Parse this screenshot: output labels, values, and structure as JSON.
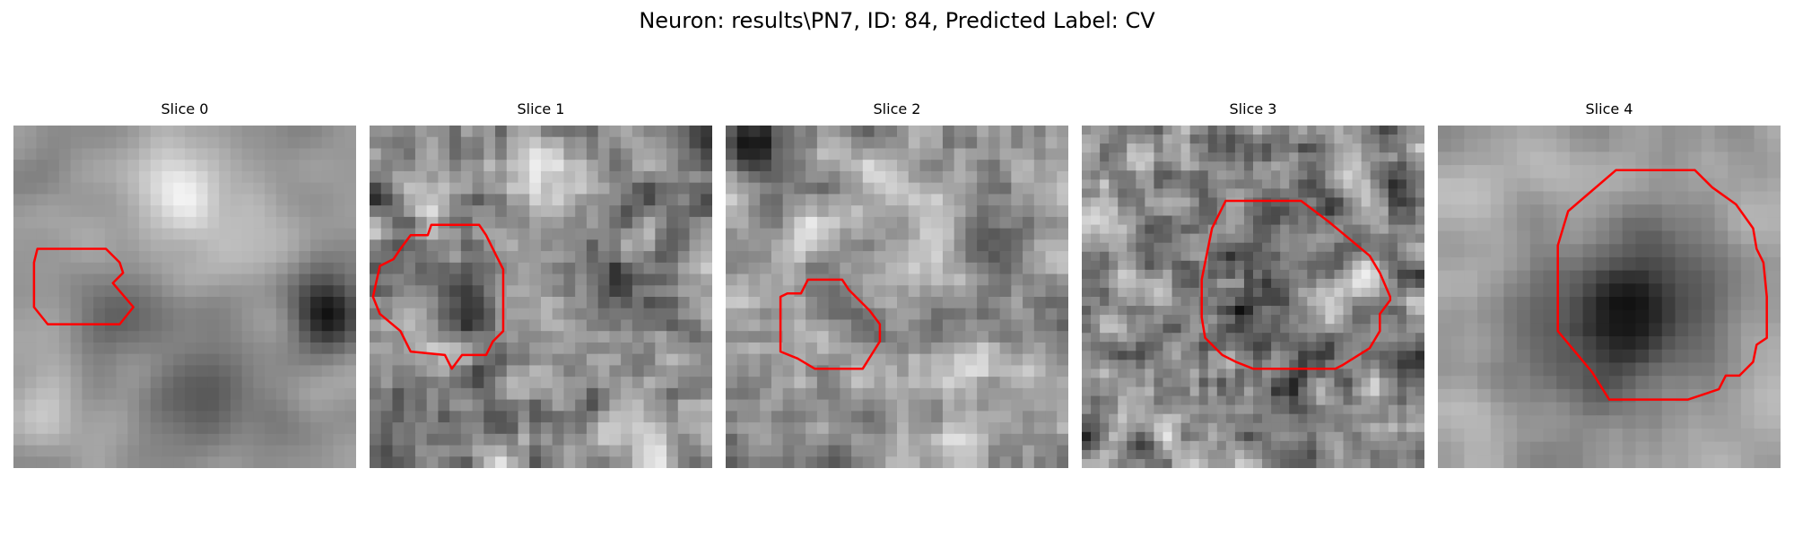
{
  "figure": {
    "title": "Neuron: results\\PN7, ID: 84, Predicted Label: CV"
  },
  "overlay_color": "#ff0000",
  "panels": [
    {
      "title": "Slice 0",
      "grid": 30,
      "seed": 11,
      "smooth": 3,
      "noise": 0.35,
      "base": 0.6,
      "blobs": [
        [
          0.48,
          0.18,
          0.14,
          0.33
        ],
        [
          0.27,
          0.55,
          0.16,
          -0.2
        ],
        [
          0.92,
          0.55,
          0.1,
          -0.55
        ],
        [
          0.6,
          0.38,
          0.12,
          0.12
        ],
        [
          0.55,
          0.8,
          0.16,
          -0.28
        ],
        [
          0.1,
          0.85,
          0.1,
          0.18
        ],
        [
          0.6,
          0.6,
          0.12,
          -0.12
        ]
      ],
      "contour": [
        [
          0.07,
          0.36
        ],
        [
          0.27,
          0.36
        ],
        [
          0.31,
          0.4
        ],
        [
          0.32,
          0.43
        ],
        [
          0.29,
          0.46
        ],
        [
          0.35,
          0.53
        ],
        [
          0.31,
          0.58
        ],
        [
          0.1,
          0.58
        ],
        [
          0.06,
          0.53
        ],
        [
          0.06,
          0.4
        ]
      ]
    },
    {
      "title": "Slice 1",
      "grid": 30,
      "seed": 23,
      "smooth": 1,
      "noise": 0.55,
      "base": 0.55,
      "blobs": [
        [
          0.5,
          0.12,
          0.12,
          0.22
        ],
        [
          0.6,
          0.25,
          0.12,
          0.12
        ],
        [
          0.3,
          0.5,
          0.12,
          -0.18
        ],
        [
          0.72,
          0.4,
          0.1,
          -0.1
        ],
        [
          0.4,
          0.85,
          0.12,
          -0.1
        ]
      ],
      "contour": [
        [
          0.12,
          0.32
        ],
        [
          0.17,
          0.32
        ],
        [
          0.18,
          0.29
        ],
        [
          0.25,
          0.29
        ],
        [
          0.26,
          0.29
        ],
        [
          0.32,
          0.29
        ],
        [
          0.34,
          0.32
        ],
        [
          0.37,
          0.38
        ],
        [
          0.39,
          0.42
        ],
        [
          0.39,
          0.6
        ],
        [
          0.36,
          0.63
        ],
        [
          0.34,
          0.67
        ],
        [
          0.27,
          0.67
        ],
        [
          0.24,
          0.71
        ],
        [
          0.22,
          0.67
        ],
        [
          0.12,
          0.66
        ],
        [
          0.09,
          0.6
        ],
        [
          0.03,
          0.55
        ],
        [
          0.01,
          0.5
        ],
        [
          0.03,
          0.41
        ],
        [
          0.07,
          0.39
        ],
        [
          0.09,
          0.36
        ]
      ]
    },
    {
      "title": "Slice 2",
      "grid": 30,
      "seed": 37,
      "smooth": 1,
      "noise": 0.45,
      "base": 0.58,
      "blobs": [
        [
          0.58,
          0.25,
          0.12,
          0.22
        ],
        [
          0.28,
          0.28,
          0.1,
          0.12
        ],
        [
          0.08,
          0.05,
          0.08,
          -0.35
        ],
        [
          0.75,
          0.35,
          0.12,
          -0.15
        ],
        [
          0.8,
          0.7,
          0.16,
          0.08
        ]
      ],
      "contour": [
        [
          0.18,
          0.49
        ],
        [
          0.22,
          0.49
        ],
        [
          0.24,
          0.45
        ],
        [
          0.34,
          0.45
        ],
        [
          0.36,
          0.48
        ],
        [
          0.42,
          0.54
        ],
        [
          0.45,
          0.58
        ],
        [
          0.45,
          0.63
        ],
        [
          0.4,
          0.71
        ],
        [
          0.36,
          0.71
        ],
        [
          0.26,
          0.71
        ],
        [
          0.21,
          0.68
        ],
        [
          0.16,
          0.66
        ],
        [
          0.16,
          0.5
        ]
      ]
    },
    {
      "title": "Slice 3",
      "grid": 38,
      "seed": 51,
      "smooth": 1,
      "noise": 0.6,
      "base": 0.55,
      "blobs": [
        [
          0.48,
          0.55,
          0.24,
          -0.22
        ],
        [
          0.85,
          0.1,
          0.1,
          -0.05
        ]
      ],
      "contour": [
        [
          0.38,
          0.3
        ],
        [
          0.42,
          0.22
        ],
        [
          0.64,
          0.22
        ],
        [
          0.72,
          0.28
        ],
        [
          0.84,
          0.38
        ],
        [
          0.87,
          0.43
        ],
        [
          0.9,
          0.5
        ],
        [
          0.9,
          0.51
        ],
        [
          0.87,
          0.55
        ],
        [
          0.87,
          0.6
        ],
        [
          0.84,
          0.65
        ],
        [
          0.76,
          0.7
        ],
        [
          0.74,
          0.71
        ],
        [
          0.68,
          0.71
        ],
        [
          0.5,
          0.71
        ],
        [
          0.45,
          0.69
        ],
        [
          0.41,
          0.67
        ],
        [
          0.36,
          0.62
        ],
        [
          0.35,
          0.56
        ],
        [
          0.35,
          0.45
        ],
        [
          0.36,
          0.4
        ]
      ]
    },
    {
      "title": "Slice 4",
      "grid": 26,
      "seed": 67,
      "smooth": 2,
      "noise": 0.3,
      "base": 0.65,
      "blobs": [
        [
          0.52,
          0.57,
          0.26,
          -0.45
        ],
        [
          0.75,
          0.42,
          0.14,
          -0.15
        ],
        [
          0.3,
          0.1,
          0.12,
          0.1
        ]
      ],
      "contour": [
        [
          0.38,
          0.25
        ],
        [
          0.52,
          0.13
        ],
        [
          0.75,
          0.13
        ],
        [
          0.8,
          0.18
        ],
        [
          0.87,
          0.23
        ],
        [
          0.92,
          0.3
        ],
        [
          0.93,
          0.36
        ],
        [
          0.95,
          0.4
        ],
        [
          0.96,
          0.5
        ],
        [
          0.96,
          0.62
        ],
        [
          0.93,
          0.64
        ],
        [
          0.92,
          0.69
        ],
        [
          0.88,
          0.73
        ],
        [
          0.84,
          0.73
        ],
        [
          0.82,
          0.77
        ],
        [
          0.73,
          0.8
        ],
        [
          0.5,
          0.8
        ],
        [
          0.45,
          0.72
        ],
        [
          0.4,
          0.66
        ],
        [
          0.35,
          0.6
        ],
        [
          0.35,
          0.35
        ]
      ]
    }
  ]
}
